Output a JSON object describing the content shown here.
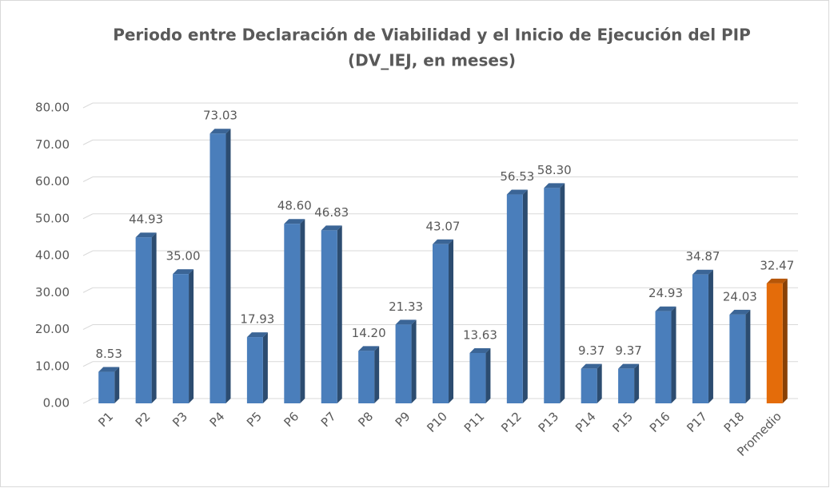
{
  "chart_data": {
    "type": "bar3d",
    "title": "Periodo  entre Declaración  de Viabilidad y el Inicio de Ejecución del PIP",
    "subtitle": "(DV_IEJ, en meses)",
    "categories": [
      "P1",
      "P2",
      "P3",
      "P4",
      "P5",
      "P6",
      "P7",
      "P8",
      "P9",
      "P10",
      "P11",
      "P12",
      "P13",
      "P14",
      "P15",
      "P16",
      "P17",
      "P18",
      "Promedio"
    ],
    "values": [
      8.53,
      44.93,
      35.0,
      73.03,
      17.93,
      48.6,
      46.83,
      14.2,
      21.33,
      43.07,
      13.63,
      56.53,
      58.3,
      9.37,
      9.37,
      24.93,
      34.87,
      24.03,
      32.47
    ],
    "value_labels": [
      "8.53",
      "44.93",
      "35.00",
      "73.03",
      "17.93",
      "48.60",
      "46.83",
      "14.20",
      "21.33",
      "43.07",
      "13.63",
      "56.53",
      "58.30",
      "9.37",
      "9.37",
      "24.93",
      "34.87",
      "24.03",
      "32.47"
    ],
    "colors": [
      "#4a7ebb",
      "#4a7ebb",
      "#4a7ebb",
      "#4a7ebb",
      "#4a7ebb",
      "#4a7ebb",
      "#4a7ebb",
      "#4a7ebb",
      "#4a7ebb",
      "#4a7ebb",
      "#4a7ebb",
      "#4a7ebb",
      "#4a7ebb",
      "#4a7ebb",
      "#4a7ebb",
      "#4a7ebb",
      "#4a7ebb",
      "#4a7ebb",
      "#e46c0a"
    ],
    "ylim": [
      0,
      80
    ],
    "yticks": [
      {
        "value": 0,
        "label": "0.00"
      },
      {
        "value": 10,
        "label": "10.00"
      },
      {
        "value": 20,
        "label": "20.00"
      },
      {
        "value": 30,
        "label": "30.00"
      },
      {
        "value": 40,
        "label": "40.00"
      },
      {
        "value": 50,
        "label": "50.00"
      },
      {
        "value": 60,
        "label": "60.00"
      },
      {
        "value": 70,
        "label": "70.00"
      },
      {
        "value": 80,
        "label": "80.00"
      }
    ],
    "grid": true
  }
}
